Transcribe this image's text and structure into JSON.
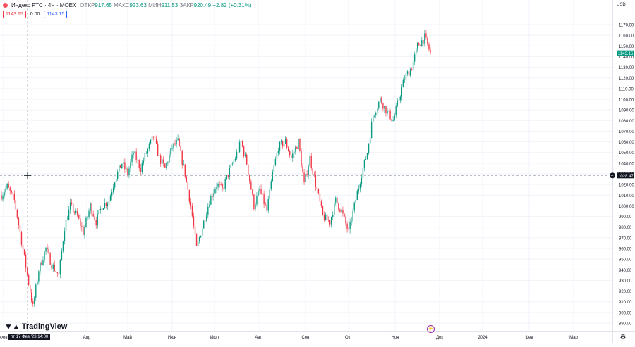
{
  "header": {
    "title": "Индекс РТС · 4Ч · MOEX",
    "ohlc": {
      "open_label": "ОТКР",
      "open": "917.65",
      "high_label": "МАКС",
      "high": "923.63",
      "low_label": "МИН",
      "low": "911.53",
      "close_label": "ЗАКР",
      "close": "920.49",
      "change": "+2.82 (+0.31%)"
    },
    "badges": {
      "sell": "1143.15",
      "spread": "0.00",
      "buy": "1143.15"
    }
  },
  "branding": {
    "logo_text": "TradingView",
    "logo_icon": "tradingview-logo-icon"
  },
  "price_axis": {
    "currency": "USD"
  },
  "crosshair": {
    "time_label": "пт 17 Фев '23  14:00",
    "price_label": "1028.47",
    "price": 1028.47
  },
  "last_price_label": "1143.15",
  "colors": {
    "up": "#089981",
    "down": "#f23645",
    "grid": "#f0f3fa",
    "crosshair_label_bg": "#131722"
  },
  "chart_data": {
    "type": "candlestick",
    "title": "Индекс РТС · 4Ч · MOEX",
    "y_ticks": [
      1170,
      1160,
      1150,
      1140,
      1130,
      1120,
      1110,
      1100,
      1090,
      1080,
      1070,
      1060,
      1050,
      1040,
      1030,
      1020,
      1010,
      1000,
      990,
      980,
      970,
      960,
      950,
      940,
      930,
      920,
      910,
      900,
      890
    ],
    "ylim": [
      885,
      1180
    ],
    "x_tick_labels": [
      "Фев",
      "Апр",
      "Май",
      "Июн",
      "Июл",
      "Авг",
      "Сен",
      "Окт",
      "Ноя",
      "Дек",
      "2024",
      "Фев",
      "Мар"
    ],
    "grid": true,
    "series": [
      {
        "anchors": [
          [
            "Фев",
            1010
          ],
          [
            "Фев",
            1018
          ],
          [
            "Фев",
            1005
          ],
          [
            "Фев",
            975
          ],
          [
            "Фев",
            935
          ],
          [
            "Фев",
            905
          ],
          [
            "Мар",
            940
          ],
          [
            "Мар",
            960
          ],
          [
            "Мар",
            945
          ],
          [
            "Мар",
            935
          ],
          [
            "Мар",
            980
          ],
          [
            "Мар",
            1000
          ],
          [
            "Апр",
            990
          ],
          [
            "Апр",
            975
          ],
          [
            "Апр",
            1000
          ],
          [
            "Апр",
            985
          ],
          [
            "Апр",
            1000
          ],
          [
            "Апр",
            1005
          ],
          [
            "Май",
            1025
          ],
          [
            "Май",
            1040
          ],
          [
            "Май",
            1030
          ],
          [
            "Май",
            1050
          ],
          [
            "Май",
            1035
          ],
          [
            "Июн",
            1050
          ],
          [
            "Июн",
            1065
          ],
          [
            "Июн",
            1045
          ],
          [
            "Июн",
            1035
          ],
          [
            "Июн",
            1055
          ],
          [
            "Июн",
            1060
          ],
          [
            "Июн",
            1030
          ],
          [
            "Июл",
            1000
          ],
          [
            "Июл",
            960
          ],
          [
            "Июл",
            985
          ],
          [
            "Июл",
            1005
          ],
          [
            "Июл",
            1020
          ],
          [
            "Июл",
            1015
          ],
          [
            "Июл",
            1030
          ],
          [
            "Июл",
            1045
          ],
          [
            "Авг",
            1060
          ],
          [
            "Авг",
            1040
          ],
          [
            "Авг",
            1000
          ],
          [
            "Авг",
            1015
          ],
          [
            "Авг",
            995
          ],
          [
            "Авг",
            1030
          ],
          [
            "Авг",
            1055
          ],
          [
            "Авг",
            1060
          ],
          [
            "Сен",
            1045
          ],
          [
            "Сен",
            1060
          ],
          [
            "Сен",
            1020
          ],
          [
            "Сен",
            1045
          ],
          [
            "Сен",
            1015
          ],
          [
            "Сен",
            990
          ],
          [
            "Сен",
            985
          ],
          [
            "Сен",
            1005
          ],
          [
            "Окт",
            995
          ],
          [
            "Окт",
            975
          ],
          [
            "Окт",
            1000
          ],
          [
            "Окт",
            1030
          ],
          [
            "Окт",
            1050
          ],
          [
            "Окт",
            1085
          ],
          [
            "Окт",
            1100
          ],
          [
            "Окт",
            1090
          ],
          [
            "Ноя",
            1080
          ],
          [
            "Ноя",
            1100
          ],
          [
            "Ноя",
            1120
          ],
          [
            "Ноя",
            1130
          ],
          [
            "Ноя",
            1150
          ],
          [
            "Ноя",
            1158
          ],
          [
            "Ноя",
            1143
          ]
        ]
      }
    ]
  }
}
